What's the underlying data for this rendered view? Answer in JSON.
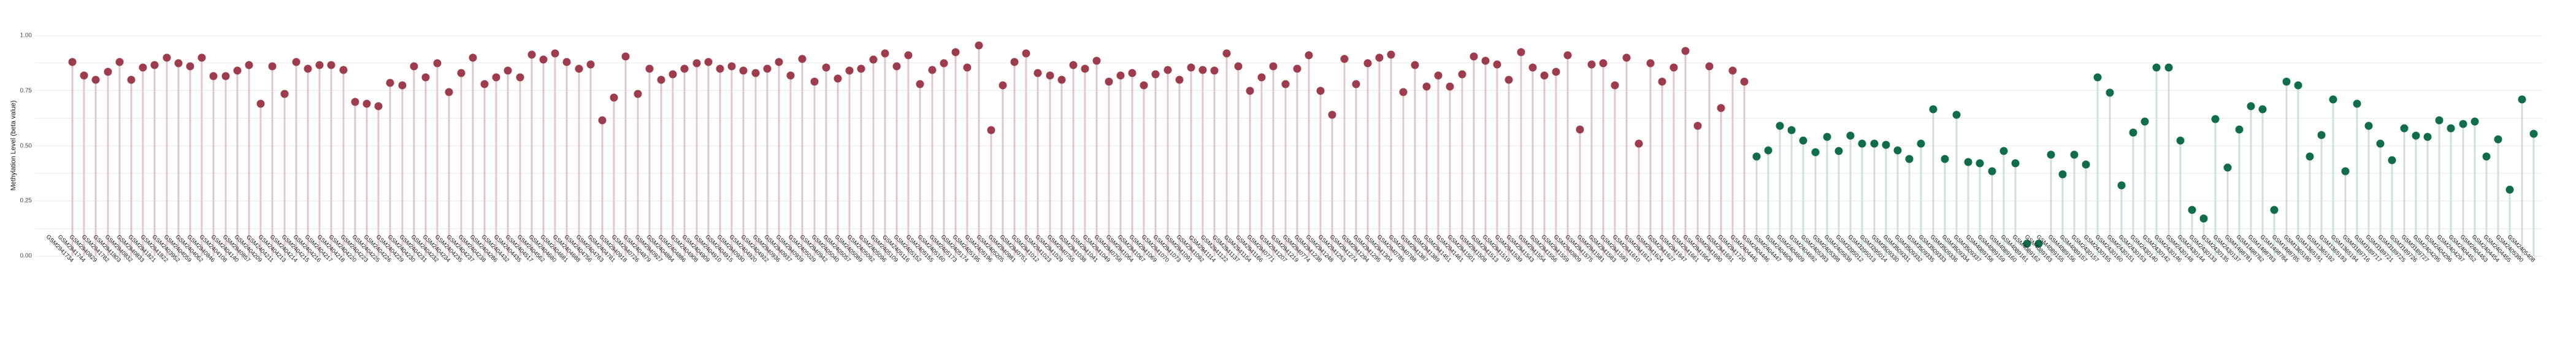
{
  "chart_data": {
    "type": "lollipop",
    "title": "",
    "xlabel": "",
    "ylabel": "Methylation Level (beta value)",
    "ylim": [
      0,
      1
    ],
    "y_tick_labels": [
      "0.00",
      "0.25",
      "0.50",
      "0.75",
      "1.00"
    ],
    "y_tick_values": [
      0,
      0.25,
      0.5,
      0.75,
      1.0
    ],
    "gridline_step": 0.125,
    "grid": "horizontal-only",
    "legend_position": "none",
    "groups": [
      {
        "name": "group-red",
        "dot_color": "#9e3c4e",
        "stem_color": "#e3c6cc",
        "start_index": 0,
        "count": 143
      },
      {
        "name": "group-green",
        "dot_color": "#0f6e48",
        "stem_color": "#cfe0d6",
        "start_index": 143,
        "count": 67
      }
    ],
    "categories": [
      "GSM2941734",
      "GSM2941744",
      "GSM2940829",
      "GSM2941782",
      "GSM2941803",
      "GSM2940832",
      "GSM2940833",
      "GSM2941821",
      "GSM2941822",
      "GSM2403952",
      "GSM2404059",
      "GSM2404062",
      "GSM2940846",
      "GSM2404108",
      "GSM2404140",
      "GSM2940857",
      "GSM2404209",
      "GSM2404211",
      "GSM2404213",
      "GSM2404214",
      "GSM2404215",
      "GSM2404216",
      "GSM2404217",
      "GSM2404218",
      "GSM2404220",
      "GSM2404223",
      "GSM2404225",
      "GSM2404226",
      "GSM2404229",
      "GSM2404230",
      "GSM2404231",
      "GSM2404232",
      "GSM2404234",
      "GSM2404235",
      "GSM2404237",
      "GSM2404238",
      "GSM2404286",
      "GSM2404432",
      "GSM2404435",
      "GSM2404517",
      "GSM2404562",
      "GSM2404680",
      "GSM2404681",
      "GSM2404688",
      "GSM2404756",
      "GSM2404763",
      "GSM2404781",
      "GSM2940918",
      "GSM2940726",
      "GSM2404879",
      "GSM2940927",
      "GSM2404884",
      "GSM2404886",
      "GSM2404908",
      "GSM2404909",
      "GSM2404910",
      "GSM2404915",
      "GSM2940930",
      "GSM2404920",
      "GSM2404922",
      "GSM2940936",
      "GSM2940937",
      "GSM2940939",
      "GSM2405029",
      "GSM2940942",
      "GSM2405040",
      "GSM2405057",
      "GSM2405089",
      "GSM2405092",
      "GSM2405096",
      "GSM2405109",
      "GSM2405116",
      "GSM2405152",
      "GSM2405155",
      "GSM2405160",
      "GSM2405173",
      "GSM2405174",
      "GSM2405195",
      "GSM2405196",
      "GSM2405205",
      "GSM2940981",
      "GSM2940751",
      "GSM2941012",
      "GSM2941023",
      "GSM2941029",
      "GSM2940755",
      "GSM2941038",
      "GSM2941041",
      "GSM2941049",
      "GSM2940758",
      "GSM2941064",
      "GSM2941067",
      "GSM2941069",
      "GSM2941070",
      "GSM2941073",
      "GSM2941091",
      "GSM2941092",
      "GSM2941114",
      "GSM2941122",
      "GSM2941137",
      "GSM2941154",
      "GSM2941166",
      "GSM2940771",
      "GSM2941207",
      "GSM2941219",
      "GSM2940774",
      "GSM2941238",
      "GSM2941248",
      "GSM2941253",
      "GSM2941274",
      "GSM2941294",
      "GSM2941295",
      "GSM2941304",
      "GSM2940785",
      "GSM2940788",
      "GSM2941387",
      "GSM2941389",
      "GSM2941451",
      "GSM2941461",
      "GSM2941501",
      "GSM2941508",
      "GSM2941513",
      "GSM2941519",
      "GSM2941539",
      "GSM2941543",
      "GSM2941554",
      "GSM2941556",
      "GSM2941559",
      "GSM2940809",
      "GSM2941575",
      "GSM2941581",
      "GSM2941583",
      "GSM2941593",
      "GSM2941610",
      "GSM2941612",
      "GSM2941624",
      "GSM2941627",
      "GSM2941647",
      "GSM2941661",
      "GSM2941664",
      "GSM2941690",
      "GSM2941691",
      "GSM2941720",
      "GSM2404445",
      "GSM2404446",
      "GSM2404447",
      "GSM2404608",
      "GSM2404609",
      "GSM2404692",
      "GSM2405393",
      "GSM2405398",
      "GSM2405638",
      "GSM3295012",
      "GSM3295013",
      "GSM3295014",
      "GSM3509330",
      "GSM3509331",
      "GSM3509332",
      "GSM3509335",
      "GSM3509333",
      "GSM3509336",
      "GSM3509334",
      "GSM3509337",
      "GSM4089158",
      "GSM4089159",
      "GSM4089160",
      "GSM4089161",
      "GSM4089162",
      "GSM4089163",
      "GSM4089155",
      "GSM4089156",
      "GSM4089157",
      "GSM2430157",
      "GSM2430155",
      "GSM2430160",
      "GSM2430151",
      "GSM2430153",
      "GSM2430140",
      "GSM2430142",
      "GSM2430146",
      "GSM2430148",
      "GSM2430144",
      "GSM2430133",
      "GSM2430135",
      "GSM2430137",
      "GSM1498781",
      "GSM1498782",
      "GSM1498783",
      "GSM1498784",
      "GSM1498785",
      "GSM1365190",
      "GSM1365191",
      "GSM1365192",
      "GSM1365193",
      "GSM1365194",
      "GSM3189716",
      "GSM3189717",
      "GSM3189721",
      "GSM3189725",
      "GSM3189726",
      "GSM3189727",
      "GSM2404295",
      "GSM2404296",
      "GSM2404297",
      "GSM2404452",
      "GSM2404453",
      "GSM2404454",
      "GSM2404455",
      "GSM2405390",
      "GSM2405408"
    ],
    "values": [
      0.88,
      0.82,
      0.8,
      0.835,
      0.88,
      0.8,
      0.855,
      0.865,
      0.9,
      0.875,
      0.86,
      0.9,
      0.815,
      0.815,
      0.84,
      0.865,
      0.69,
      0.86,
      0.735,
      0.88,
      0.85,
      0.865,
      0.865,
      0.845,
      0.7,
      0.69,
      0.68,
      0.785,
      0.775,
      0.86,
      0.81,
      0.875,
      0.745,
      0.83,
      0.9,
      0.78,
      0.81,
      0.84,
      0.81,
      0.915,
      0.89,
      0.92,
      0.88,
      0.85,
      0.87,
      0.615,
      0.72,
      0.905,
      0.735,
      0.85,
      0.8,
      0.825,
      0.85,
      0.875,
      0.88,
      0.85,
      0.86,
      0.84,
      0.83,
      0.85,
      0.88,
      0.82,
      0.895,
      0.79,
      0.855,
      0.805,
      0.84,
      0.85,
      0.89,
      0.92,
      0.86,
      0.91,
      0.78,
      0.845,
      0.875,
      0.925,
      0.855,
      0.955,
      0.57,
      0.775,
      0.88,
      0.92,
      0.83,
      0.82,
      0.8,
      0.865,
      0.85,
      0.885,
      0.79,
      0.82,
      0.83,
      0.775,
      0.825,
      0.845,
      0.8,
      0.855,
      0.845,
      0.84,
      0.92,
      0.86,
      0.75,
      0.81,
      0.86,
      0.78,
      0.85,
      0.91,
      0.75,
      0.64,
      0.895,
      0.78,
      0.875,
      0.9,
      0.915,
      0.745,
      0.865,
      0.77,
      0.82,
      0.77,
      0.825,
      0.905,
      0.885,
      0.87,
      0.8,
      0.925,
      0.855,
      0.82,
      0.835,
      0.91,
      0.575,
      0.87,
      0.875,
      0.775,
      0.9,
      0.51,
      0.875,
      0.79,
      0.855,
      0.93,
      0.59,
      0.86,
      0.67,
      0.84,
      0.79,
      0.45,
      0.48,
      0.59,
      0.57,
      0.525,
      0.47,
      0.54,
      0.475,
      0.545,
      0.51,
      0.51,
      0.505,
      0.48,
      0.44,
      0.51,
      0.665,
      0.44,
      0.64,
      0.425,
      0.42,
      0.385,
      0.475,
      0.42,
      0.055,
      0.055,
      0.46,
      0.37,
      0.46,
      0.415,
      0.81,
      0.74,
      0.32,
      0.56,
      0.61,
      0.855,
      0.855,
      0.525,
      0.21,
      0.17,
      0.62,
      0.4,
      0.575,
      0.68,
      0.665,
      0.21,
      0.79,
      0.775,
      0.45,
      0.55,
      0.71,
      0.385,
      0.69,
      0.59,
      0.51,
      0.435,
      0.58,
      0.545,
      0.54,
      0.615,
      0.58,
      0.6,
      0.61,
      0.45,
      0.53,
      0.3,
      0.71,
      0.555
    ]
  },
  "colors": {
    "background": "#ffffff",
    "gridline": "#ebebeb",
    "axis_text": "#4d4d4d",
    "label_text": "#1a1a1a"
  }
}
